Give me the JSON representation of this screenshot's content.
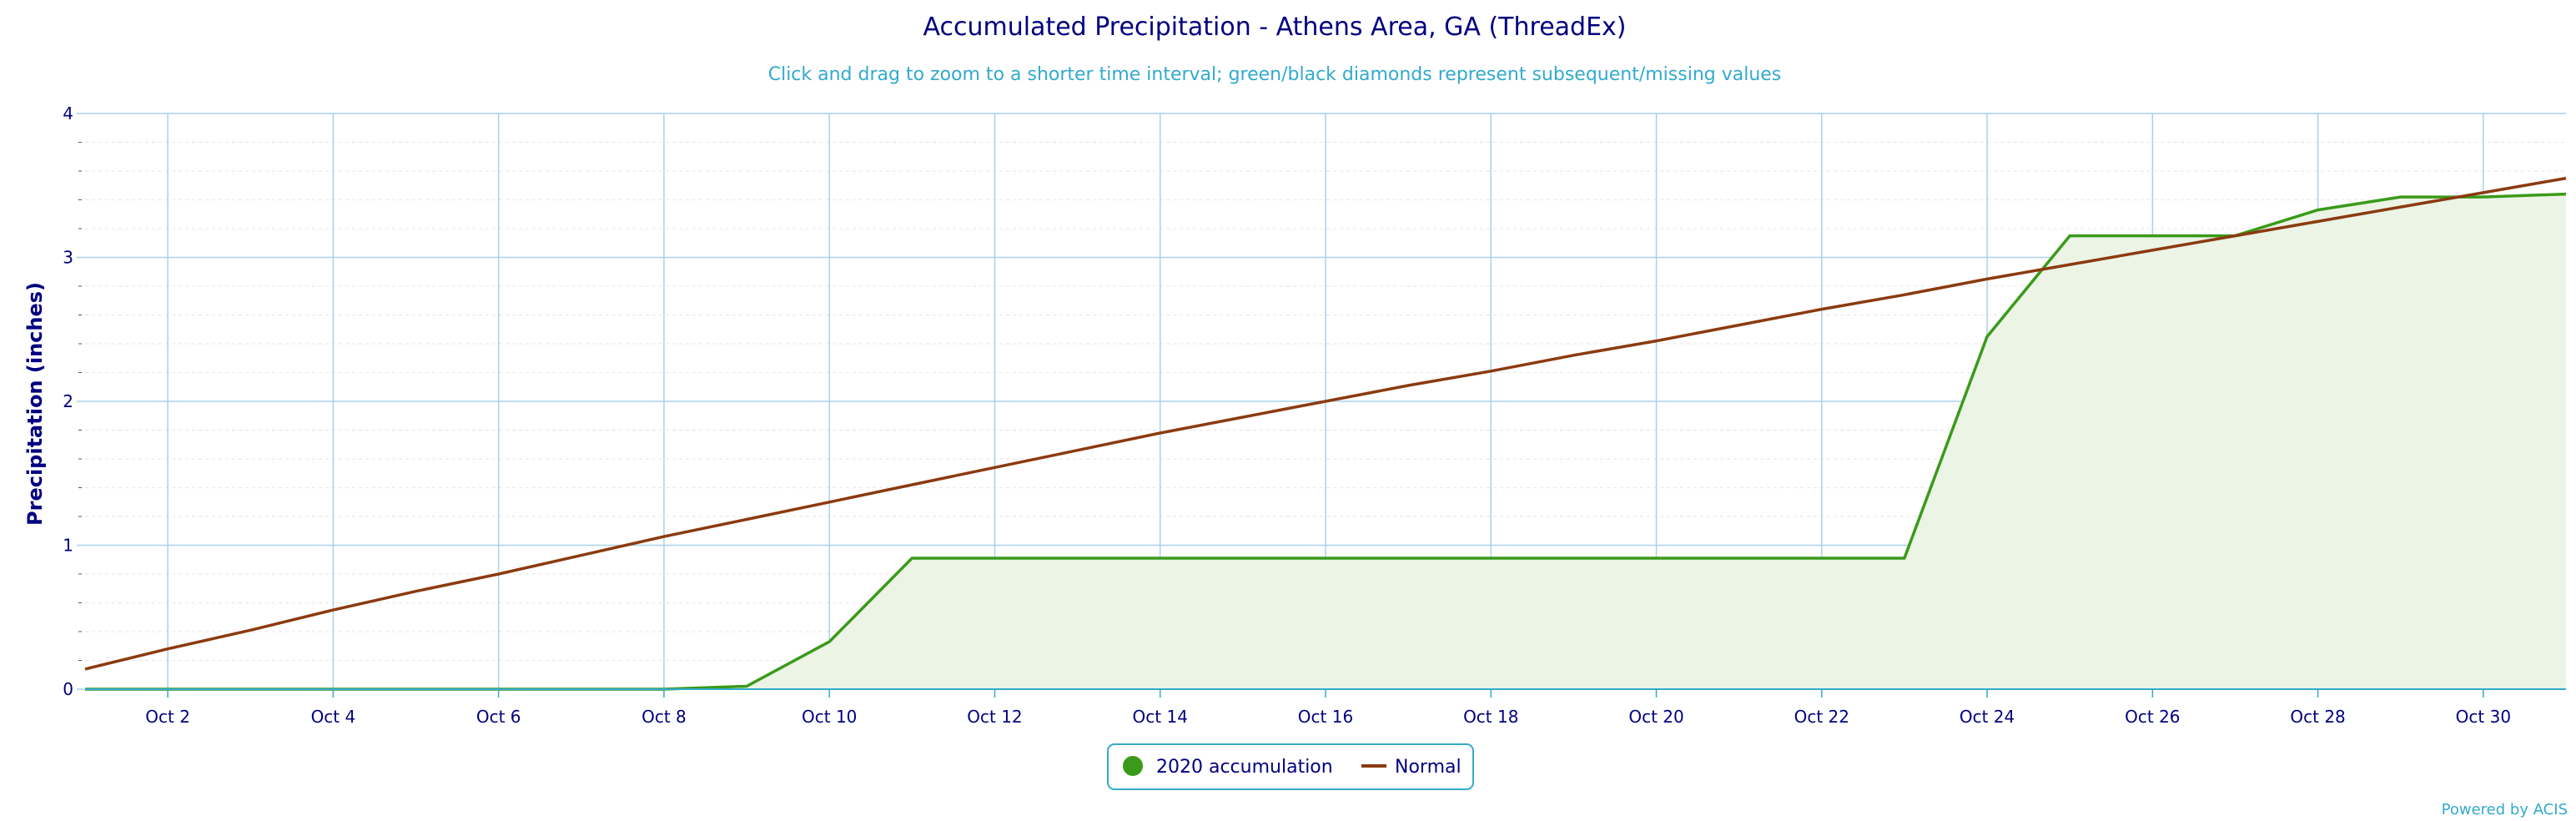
{
  "chart_data": {
    "type": "area",
    "title": "Accumulated Precipitation - Athens Area, GA (ThreadEx)",
    "subtitle": "Click and drag to zoom to a shorter time interval; green/black diamonds represent subsequent/missing values",
    "ylabel": "Precipitation (inches)",
    "xlabel": "",
    "xlim": [
      1,
      31
    ],
    "ylim": [
      0,
      4
    ],
    "y_ticks": [
      "0",
      "1",
      "2",
      "3",
      "4"
    ],
    "x_ticks": [
      "Oct 2",
      "Oct 4",
      "Oct 6",
      "Oct 8",
      "Oct 10",
      "Oct 12",
      "Oct 14",
      "Oct 16",
      "Oct 18",
      "Oct 20",
      "Oct 22",
      "Oct 24",
      "Oct 26",
      "Oct 28",
      "Oct 30"
    ],
    "grid": true,
    "legend_position": "bottom-center",
    "series": [
      {
        "name": "2020 accumulation",
        "color": "#3a9a1a",
        "fill": "#ebf4e5",
        "x": [
          1,
          2,
          3,
          4,
          5,
          6,
          7,
          8,
          9,
          10,
          11,
          12,
          13,
          14,
          15,
          16,
          17,
          18,
          19,
          20,
          21,
          22,
          23,
          24,
          25,
          26,
          27,
          28,
          29,
          30,
          31
        ],
        "values": [
          0,
          0,
          0,
          0,
          0,
          0,
          0,
          0,
          0.02,
          0.33,
          0.91,
          0.91,
          0.91,
          0.91,
          0.91,
          0.91,
          0.91,
          0.91,
          0.91,
          0.91,
          0.91,
          0.91,
          0.91,
          2.45,
          3.15,
          3.15,
          3.15,
          3.33,
          3.42,
          3.42,
          3.44
        ]
      },
      {
        "name": "Normal",
        "color": "#8b3a0f",
        "x": [
          1,
          2,
          3,
          4,
          5,
          6,
          7,
          8,
          9,
          10,
          11,
          12,
          13,
          14,
          15,
          16,
          17,
          18,
          19,
          20,
          21,
          22,
          23,
          24,
          25,
          26,
          27,
          28,
          29,
          30,
          31
        ],
        "values": [
          0.14,
          0.28,
          0.41,
          0.55,
          0.68,
          0.8,
          0.93,
          1.06,
          1.18,
          1.3,
          1.42,
          1.54,
          1.66,
          1.78,
          1.89,
          2.0,
          2.11,
          2.21,
          2.32,
          2.42,
          2.53,
          2.64,
          2.74,
          2.85,
          2.95,
          3.05,
          3.15,
          3.25,
          3.35,
          3.45,
          3.55
        ]
      }
    ]
  },
  "credit": "Powered by ACIS",
  "colors": {
    "title": "#000080",
    "subtitle": "#33aacc",
    "grid": "#a9d2ea",
    "minor_grid": "#e6e6e6",
    "axis_line": "#33aacc",
    "legend_border": "#33aacc",
    "credit": "#33aacc"
  }
}
